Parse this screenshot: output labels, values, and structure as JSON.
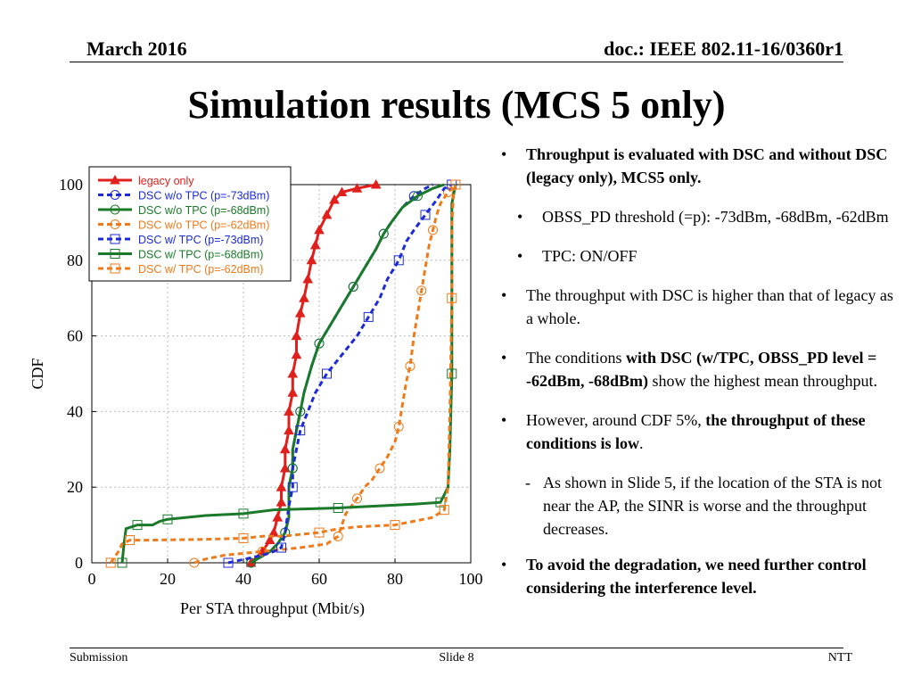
{
  "header": {
    "date": "March 2016",
    "doc": "doc.: IEEE 802.11-16/0360r1"
  },
  "title": "Simulation results (MCS 5 only)",
  "chart_data": {
    "type": "line",
    "xlabel": "Per STA throughput (Mbit/s)",
    "ylabel": "CDF",
    "xlim": [
      0,
      100
    ],
    "ylim": [
      0,
      100
    ],
    "xticks": [
      "0",
      "20",
      "40",
      "60",
      "80",
      "100"
    ],
    "yticks": [
      "0",
      "20",
      "40",
      "60",
      "80",
      "100"
    ],
    "grid": true,
    "legend_position": "top-left",
    "series": [
      {
        "name": "legacy only",
        "color": "#e0201c",
        "dash": "solid",
        "marker": "triangle",
        "points": [
          [
            42,
            0
          ],
          [
            45,
            3
          ],
          [
            47,
            6
          ],
          [
            48,
            8
          ],
          [
            49,
            12
          ],
          [
            50,
            16
          ],
          [
            50,
            20
          ],
          [
            51,
            25
          ],
          [
            51,
            30
          ],
          [
            52,
            35
          ],
          [
            52,
            40
          ],
          [
            53,
            45
          ],
          [
            53,
            50
          ],
          [
            54,
            55
          ],
          [
            54,
            60
          ],
          [
            55,
            66
          ],
          [
            56,
            70
          ],
          [
            57,
            75
          ],
          [
            58,
            80
          ],
          [
            59,
            84
          ],
          [
            60,
            88
          ],
          [
            62,
            92
          ],
          [
            64,
            96
          ],
          [
            66,
            98
          ],
          [
            70,
            99
          ],
          [
            75,
            100
          ]
        ]
      },
      {
        "name": "DSC w/o TPC (p=-73dBm)",
        "color": "#1c2bd6",
        "dash": "dash",
        "marker": "circle",
        "points": [
          [
            42,
            0
          ],
          [
            47,
            3
          ],
          [
            49,
            5
          ],
          [
            51,
            8
          ],
          [
            52,
            12
          ],
          [
            52,
            20
          ],
          [
            53,
            25
          ],
          [
            53,
            30
          ],
          [
            54,
            35
          ],
          [
            55,
            40
          ],
          [
            56,
            45
          ],
          [
            58,
            52
          ],
          [
            60,
            58
          ],
          [
            63,
            63
          ],
          [
            66,
            68
          ],
          [
            69,
            73
          ],
          [
            72,
            78
          ],
          [
            75,
            83
          ],
          [
            77,
            87
          ],
          [
            79,
            90
          ],
          [
            82,
            94
          ],
          [
            85,
            97
          ],
          [
            88,
            99
          ],
          [
            90,
            100
          ]
        ]
      },
      {
        "name": "DSC w/o TPC (p=-68dBm)",
        "color": "#1a7a2a",
        "dash": "solid",
        "marker": "circle",
        "points": [
          [
            42,
            0
          ],
          [
            47,
            3
          ],
          [
            49,
            5
          ],
          [
            51,
            8
          ],
          [
            52,
            12
          ],
          [
            52,
            20
          ],
          [
            53,
            25
          ],
          [
            53,
            30
          ],
          [
            54,
            35
          ],
          [
            55,
            40
          ],
          [
            56,
            45
          ],
          [
            58,
            52
          ],
          [
            60,
            58
          ],
          [
            63,
            63
          ],
          [
            66,
            68
          ],
          [
            69,
            73
          ],
          [
            72,
            78
          ],
          [
            75,
            83
          ],
          [
            77,
            87
          ],
          [
            79,
            90
          ],
          [
            82,
            94
          ],
          [
            86,
            97
          ],
          [
            90,
            99
          ],
          [
            93,
            100
          ]
        ]
      },
      {
        "name": "DSC w/o TPC (p=-62dBm)",
        "color": "#ee7a1a",
        "dash": "dash",
        "marker": "circle",
        "points": [
          [
            27,
            0
          ],
          [
            30,
            1
          ],
          [
            35,
            2
          ],
          [
            45,
            3
          ],
          [
            55,
            4
          ],
          [
            62,
            5
          ],
          [
            65,
            7
          ],
          [
            66,
            10
          ],
          [
            67,
            13
          ],
          [
            70,
            17
          ],
          [
            72,
            20
          ],
          [
            74,
            22
          ],
          [
            76,
            25
          ],
          [
            78,
            28
          ],
          [
            80,
            32
          ],
          [
            81,
            36
          ],
          [
            82,
            42
          ],
          [
            83,
            48
          ],
          [
            84,
            52
          ],
          [
            85,
            60
          ],
          [
            86,
            66
          ],
          [
            87,
            72
          ],
          [
            88,
            78
          ],
          [
            89,
            84
          ],
          [
            90,
            88
          ],
          [
            91,
            92
          ],
          [
            92,
            95
          ],
          [
            94,
            98
          ],
          [
            96,
            100
          ]
        ]
      },
      {
        "name": "DSC w/ TPC (p=-73dBm)",
        "color": "#1c2bd6",
        "dash": "dash",
        "marker": "square",
        "points": [
          [
            36,
            0
          ],
          [
            45,
            2
          ],
          [
            48,
            3
          ],
          [
            50,
            4
          ],
          [
            51,
            8
          ],
          [
            52,
            15
          ],
          [
            53,
            20
          ],
          [
            53,
            25
          ],
          [
            54,
            30
          ],
          [
            55,
            35
          ],
          [
            57,
            40
          ],
          [
            59,
            45
          ],
          [
            62,
            50
          ],
          [
            66,
            55
          ],
          [
            70,
            60
          ],
          [
            73,
            65
          ],
          [
            76,
            70
          ],
          [
            78,
            75
          ],
          [
            81,
            80
          ],
          [
            83,
            85
          ],
          [
            85,
            88
          ],
          [
            88,
            92
          ],
          [
            91,
            96
          ],
          [
            93,
            99
          ],
          [
            95,
            100
          ]
        ]
      },
      {
        "name": "DSC w/ TPC (p=-68dBm)",
        "color": "#1a7a2a",
        "dash": "solid",
        "marker": "square",
        "points": [
          [
            8,
            0
          ],
          [
            8.5,
            5
          ],
          [
            9,
            9
          ],
          [
            12,
            10
          ],
          [
            16,
            10
          ],
          [
            18,
            11
          ],
          [
            20,
            11.5
          ],
          [
            25,
            12
          ],
          [
            30,
            12.5
          ],
          [
            40,
            13
          ],
          [
            48,
            14
          ],
          [
            55,
            14.2
          ],
          [
            65,
            14.5
          ],
          [
            75,
            15
          ],
          [
            85,
            15.5
          ],
          [
            92,
            16
          ],
          [
            94,
            20
          ],
          [
            94.5,
            30
          ],
          [
            95,
            50
          ],
          [
            95,
            80
          ],
          [
            95,
            95
          ],
          [
            96,
            100
          ]
        ]
      },
      {
        "name": "DSC w/ TPC (p=-62dBm)",
        "color": "#ee7a1a",
        "dash": "dash",
        "marker": "square",
        "points": [
          [
            5,
            0
          ],
          [
            7,
            3
          ],
          [
            8,
            5
          ],
          [
            10,
            6
          ],
          [
            15,
            6
          ],
          [
            30,
            6.2
          ],
          [
            40,
            6.5
          ],
          [
            45,
            7
          ],
          [
            50,
            7
          ],
          [
            60,
            8
          ],
          [
            65,
            9
          ],
          [
            70,
            9.5
          ],
          [
            80,
            10
          ],
          [
            85,
            11
          ],
          [
            90,
            12
          ],
          [
            93,
            14
          ],
          [
            94,
            20
          ],
          [
            94.5,
            40
          ],
          [
            95,
            70
          ],
          [
            95,
            90
          ],
          [
            95.5,
            98
          ],
          [
            96,
            100
          ]
        ]
      }
    ]
  },
  "bullets": [
    {
      "level": 1,
      "mark": "•",
      "runs": [
        {
          "t": "Throughput is evaluated with DSC and without DSC (legacy only), MCS5 only.",
          "b": true
        }
      ]
    },
    {
      "level": 2,
      "mark": "•",
      "runs": [
        {
          "t": "OBSS_PD threshold (=p): -73dBm, -68dBm, -62dBm",
          "b": false
        }
      ]
    },
    {
      "level": 2,
      "mark": "•",
      "runs": [
        {
          "t": "TPC:   ON/OFF",
          "b": false
        }
      ]
    },
    {
      "level": 1,
      "mark": "•",
      "runs": [
        {
          "t": "The throughput with DSC is higher than that of legacy as a whole.",
          "b": false
        }
      ]
    },
    {
      "level": 1,
      "mark": "•",
      "runs": [
        {
          "t": "The conditions ",
          "b": false
        },
        {
          "t": "with DSC (w/TPC, OBSS_PD level = -62dBm, -68dBm)",
          "b": true
        },
        {
          "t": " show the highest mean throughput.",
          "b": false
        }
      ]
    },
    {
      "level": 1,
      "mark": "•",
      "runs": [
        {
          "t": "However, around CDF 5%, ",
          "b": false
        },
        {
          "t": "the throughput of these conditions is low",
          "b": true
        },
        {
          "t": ".",
          "b": false
        }
      ]
    },
    {
      "level": 3,
      "mark": "-",
      "runs": [
        {
          "t": "As shown in Slide 5, if the location of the STA is not near the AP, the SINR is worse and the throughput decreases.",
          "b": false
        }
      ]
    },
    {
      "level": 1,
      "mark": "•",
      "runs": [
        {
          "t": "To avoid the degradation, we need further control considering the interference level.",
          "b": true
        }
      ]
    }
  ],
  "footer": {
    "left": "Submission",
    "center": "Slide 8",
    "right": "NTT"
  }
}
